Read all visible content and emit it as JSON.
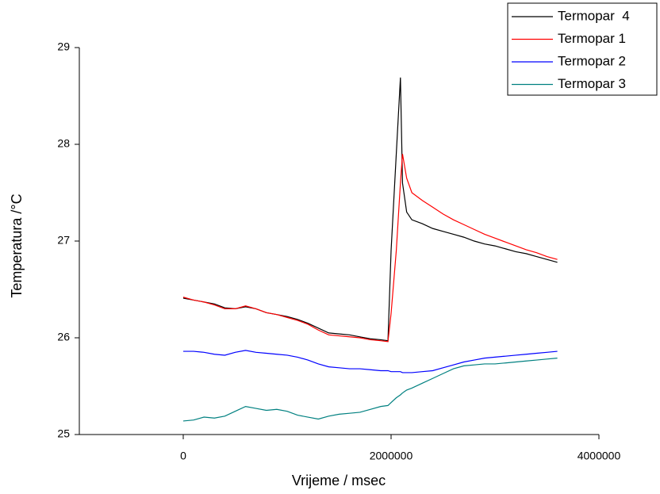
{
  "chart_data": {
    "type": "line",
    "x_label": "Vrijeme / msec",
    "y_label": "Temperatura /°C",
    "x": [
      0,
      100000,
      200000,
      300000,
      400000,
      500000,
      600000,
      700000,
      800000,
      900000,
      1000000,
      1100000,
      1200000,
      1300000,
      1400000,
      1500000,
      1600000,
      1700000,
      1800000,
      1900000,
      1970000,
      2000000,
      2050000,
      2090000,
      2110000,
      2150000,
      2200000,
      2300000,
      2400000,
      2500000,
      2600000,
      2700000,
      2800000,
      2900000,
      3000000,
      3100000,
      3200000,
      3300000,
      3400000,
      3500000,
      3600000
    ],
    "series": [
      {
        "name": "Termopar  4",
        "color": "#000000",
        "values": [
          26.41,
          26.39,
          26.37,
          26.35,
          26.31,
          26.3,
          26.32,
          26.3,
          26.26,
          26.24,
          26.22,
          26.19,
          26.15,
          26.1,
          26.05,
          26.04,
          26.03,
          26.01,
          25.99,
          25.98,
          25.97,
          26.9,
          27.9,
          28.69,
          27.6,
          27.3,
          27.22,
          27.18,
          27.13,
          27.1,
          27.07,
          27.04,
          27.0,
          26.97,
          26.95,
          26.92,
          26.89,
          26.87,
          26.84,
          26.81,
          26.78
        ]
      },
      {
        "name": "Termopar 1",
        "color": "#ff0000",
        "values": [
          26.42,
          26.39,
          26.37,
          26.34,
          26.3,
          26.3,
          26.33,
          26.3,
          26.26,
          26.24,
          26.21,
          26.18,
          26.14,
          26.08,
          26.03,
          26.02,
          26.01,
          26.0,
          25.98,
          25.97,
          25.96,
          26.25,
          26.9,
          27.6,
          27.9,
          27.65,
          27.5,
          27.42,
          27.35,
          27.28,
          27.22,
          27.17,
          27.12,
          27.07,
          27.03,
          26.99,
          26.95,
          26.91,
          26.88,
          26.84,
          26.81
        ]
      },
      {
        "name": "Termopar 2",
        "color": "#0000ff",
        "values": [
          25.86,
          25.86,
          25.85,
          25.83,
          25.82,
          25.85,
          25.87,
          25.85,
          25.84,
          25.83,
          25.82,
          25.8,
          25.77,
          25.73,
          25.7,
          25.69,
          25.68,
          25.68,
          25.67,
          25.66,
          25.66,
          25.65,
          25.65,
          25.65,
          25.64,
          25.64,
          25.64,
          25.65,
          25.66,
          25.69,
          25.72,
          25.75,
          25.77,
          25.79,
          25.8,
          25.81,
          25.82,
          25.83,
          25.84,
          25.85,
          25.86
        ]
      },
      {
        "name": "Termopar 3",
        "color": "#008080",
        "values": [
          25.14,
          25.15,
          25.18,
          25.17,
          25.19,
          25.24,
          25.29,
          25.27,
          25.25,
          25.26,
          25.24,
          25.2,
          25.18,
          25.16,
          25.19,
          25.21,
          25.22,
          25.23,
          25.26,
          25.29,
          25.3,
          25.33,
          25.38,
          25.41,
          25.43,
          25.46,
          25.48,
          25.53,
          25.58,
          25.63,
          25.68,
          25.71,
          25.72,
          25.73,
          25.73,
          25.74,
          25.75,
          25.76,
          25.77,
          25.78,
          25.79
        ]
      }
    ],
    "xlim": [
      -1000000,
      4000000
    ],
    "xticks": [
      0,
      2000000,
      4000000
    ],
    "ylim": [
      25,
      29
    ],
    "yticks": [
      25,
      26,
      27,
      28,
      29
    ],
    "legend": "top-right"
  }
}
